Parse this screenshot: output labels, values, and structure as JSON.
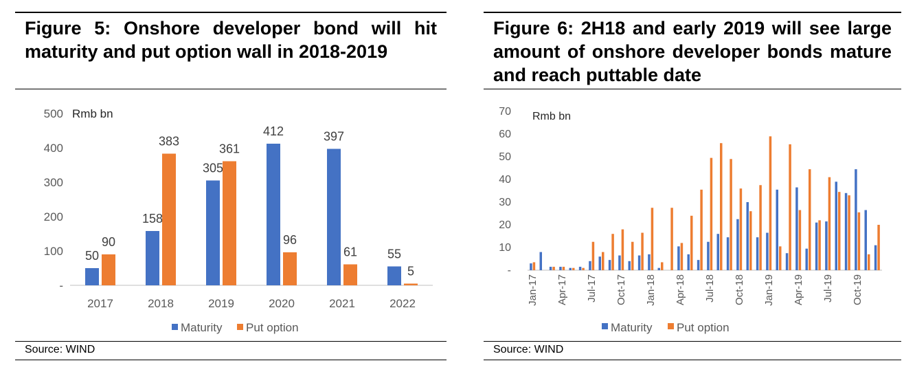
{
  "figure5": {
    "title": "Figure 5: Onshore developer bond will hit maturity and put option wall in 2018-2019",
    "source": "Source: WIND"
  },
  "figure6": {
    "title": "Figure 6: 2H18 and early 2019 will see large amount of onshore developer bonds mature and reach puttable date",
    "source": "Source: WIND"
  },
  "colors": {
    "maturity": "#4472C4",
    "put_option": "#ED7D31",
    "axis": "#BFBFBF",
    "tick_text": "#595959"
  },
  "chart_data": [
    {
      "type": "bar",
      "unit_label": "Rmb bn",
      "categories": [
        "2017",
        "2018",
        "2019",
        "2020",
        "2021",
        "2022"
      ],
      "series": [
        {
          "name": "Maturity",
          "values": [
            50,
            158,
            305,
            412,
            397,
            55
          ]
        },
        {
          "name": "Put option",
          "values": [
            90,
            383,
            361,
            96,
            61,
            5
          ]
        }
      ],
      "ylim": [
        0,
        500
      ],
      "yticks": [
        "-",
        "100",
        "200",
        "300",
        "400",
        "500"
      ],
      "data_labels": true,
      "legend": "bottom",
      "grid": false
    },
    {
      "type": "bar",
      "unit_label": "Rmb bn",
      "categories": [
        "Jan-17",
        "Feb-17",
        "Mar-17",
        "Apr-17",
        "May-17",
        "Jun-17",
        "Jul-17",
        "Aug-17",
        "Sep-17",
        "Oct-17",
        "Nov-17",
        "Dec-17",
        "Jan-18",
        "Feb-18",
        "Mar-18",
        "Apr-18",
        "May-18",
        "Jun-18",
        "Jul-18",
        "Aug-18",
        "Sep-18",
        "Oct-18",
        "Nov-18",
        "Dec-18",
        "Jan-19",
        "Feb-19",
        "Mar-19",
        "Apr-19",
        "May-19",
        "Jun-19",
        "Jul-19",
        "Aug-19",
        "Sep-19",
        "Oct-19",
        "Nov-19",
        "Dec-19"
      ],
      "x_tick_labels": [
        "Jan-17",
        "",
        "",
        "Apr-17",
        "",
        "",
        "Jul-17",
        "",
        "",
        "Oct-17",
        "",
        "",
        "Jan-18",
        "",
        "",
        "Apr-18",
        "",
        "",
        "Jul-18",
        "",
        "",
        "Oct-18",
        "",
        "",
        "Jan-19",
        "",
        "",
        "Apr-19",
        "",
        "",
        "Jul-19",
        "",
        "",
        "Oct-19",
        "",
        ""
      ],
      "series": [
        {
          "name": "Maturity",
          "values": [
            3,
            8,
            1.5,
            1.5,
            1,
            1.5,
            4,
            6,
            4.5,
            6.5,
            4,
            6.5,
            7,
            1,
            0,
            10.5,
            7,
            4.5,
            12.5,
            16,
            14.5,
            22.5,
            30,
            14.5,
            16.5,
            35.5,
            7.5,
            36.5,
            9.5,
            21,
            21.5,
            39,
            34,
            44.5,
            26.5,
            11
          ]
        },
        {
          "name": "Put option",
          "values": [
            3.5,
            0,
            1.5,
            1.5,
            1,
            1,
            12.5,
            8,
            16,
            18,
            12.5,
            16.5,
            27.5,
            3.5,
            27.5,
            12,
            24,
            35.5,
            49.5,
            56,
            49,
            36,
            26,
            37.5,
            59,
            10.5,
            55.5,
            26.5,
            44.5,
            22,
            41,
            34.5,
            33,
            25.5,
            7,
            20
          ]
        }
      ],
      "ylim": [
        0,
        70
      ],
      "yticks": [
        "-",
        "10",
        "20",
        "30",
        "40",
        "50",
        "60",
        "70"
      ],
      "legend": "bottom",
      "grid": false
    }
  ]
}
